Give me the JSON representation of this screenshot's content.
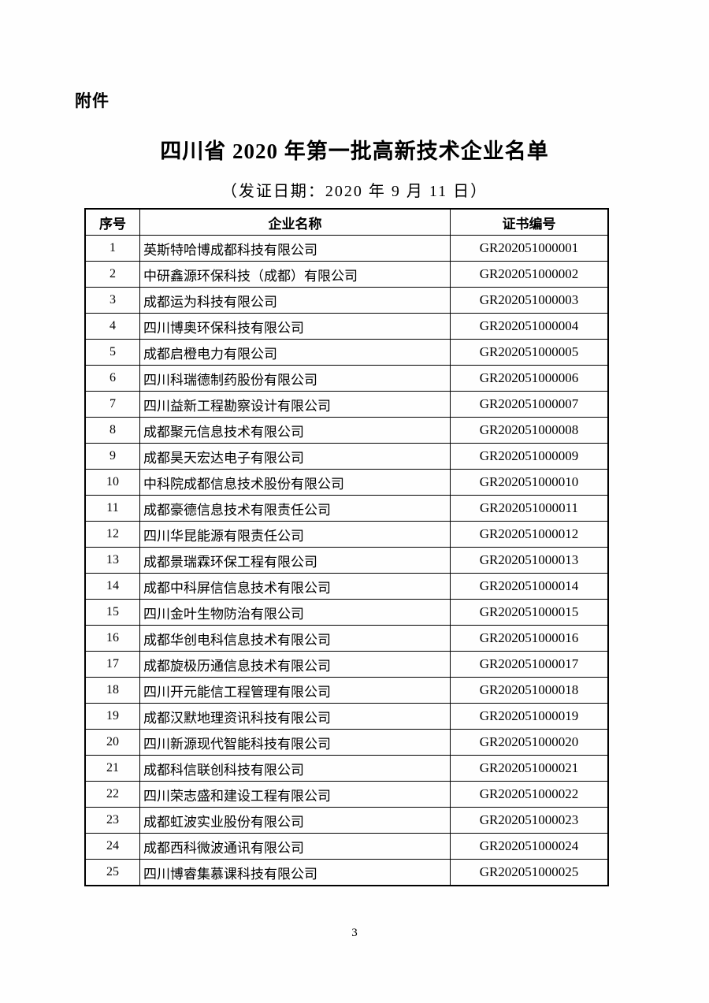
{
  "page": {
    "attachment_label": "附件",
    "title": "四川省 2020 年第一批高新技术企业名单",
    "subtitle": "（发证日期：2020 年 9 月 11 日）",
    "page_number": "3"
  },
  "table": {
    "headers": [
      "序号",
      "企业名称",
      "证书编号"
    ],
    "rows": [
      {
        "no": "1",
        "name": "英斯特哈博成都科技有限公司",
        "cert": "GR202051000001"
      },
      {
        "no": "2",
        "name": "中研鑫源环保科技（成都）有限公司",
        "cert": "GR202051000002"
      },
      {
        "no": "3",
        "name": "成都运为科技有限公司",
        "cert": "GR202051000003"
      },
      {
        "no": "4",
        "name": "四川博奥环保科技有限公司",
        "cert": "GR202051000004"
      },
      {
        "no": "5",
        "name": "成都启橙电力有限公司",
        "cert": "GR202051000005"
      },
      {
        "no": "6",
        "name": "四川科瑞德制药股份有限公司",
        "cert": "GR202051000006"
      },
      {
        "no": "7",
        "name": "四川益新工程勘察设计有限公司",
        "cert": "GR202051000007"
      },
      {
        "no": "8",
        "name": "成都聚元信息技术有限公司",
        "cert": "GR202051000008"
      },
      {
        "no": "9",
        "name": "成都昊天宏达电子有限公司",
        "cert": "GR202051000009"
      },
      {
        "no": "10",
        "name": "中科院成都信息技术股份有限公司",
        "cert": "GR202051000010"
      },
      {
        "no": "11",
        "name": "成都豪德信息技术有限责任公司",
        "cert": "GR202051000011"
      },
      {
        "no": "12",
        "name": "四川华昆能源有限责任公司",
        "cert": "GR202051000012"
      },
      {
        "no": "13",
        "name": "成都景瑞霖环保工程有限公司",
        "cert": "GR202051000013"
      },
      {
        "no": "14",
        "name": "成都中科屏信信息技术有限公司",
        "cert": "GR202051000014"
      },
      {
        "no": "15",
        "name": "四川金叶生物防治有限公司",
        "cert": "GR202051000015"
      },
      {
        "no": "16",
        "name": "成都华创电科信息技术有限公司",
        "cert": "GR202051000016"
      },
      {
        "no": "17",
        "name": "成都旋极历通信息技术有限公司",
        "cert": "GR202051000017"
      },
      {
        "no": "18",
        "name": "四川开元能信工程管理有限公司",
        "cert": "GR202051000018"
      },
      {
        "no": "19",
        "name": "成都汉默地理资讯科技有限公司",
        "cert": "GR202051000019"
      },
      {
        "no": "20",
        "name": "四川新源现代智能科技有限公司",
        "cert": "GR202051000020"
      },
      {
        "no": "21",
        "name": "成都科信联创科技有限公司",
        "cert": "GR202051000021"
      },
      {
        "no": "22",
        "name": "四川荣志盛和建设工程有限公司",
        "cert": "GR202051000022"
      },
      {
        "no": "23",
        "name": "成都虹波实业股份有限公司",
        "cert": "GR202051000023"
      },
      {
        "no": "24",
        "name": "成都西科微波通讯有限公司",
        "cert": "GR202051000024"
      },
      {
        "no": "25",
        "name": "四川博睿集慕课科技有限公司",
        "cert": "GR202051000025"
      }
    ]
  }
}
